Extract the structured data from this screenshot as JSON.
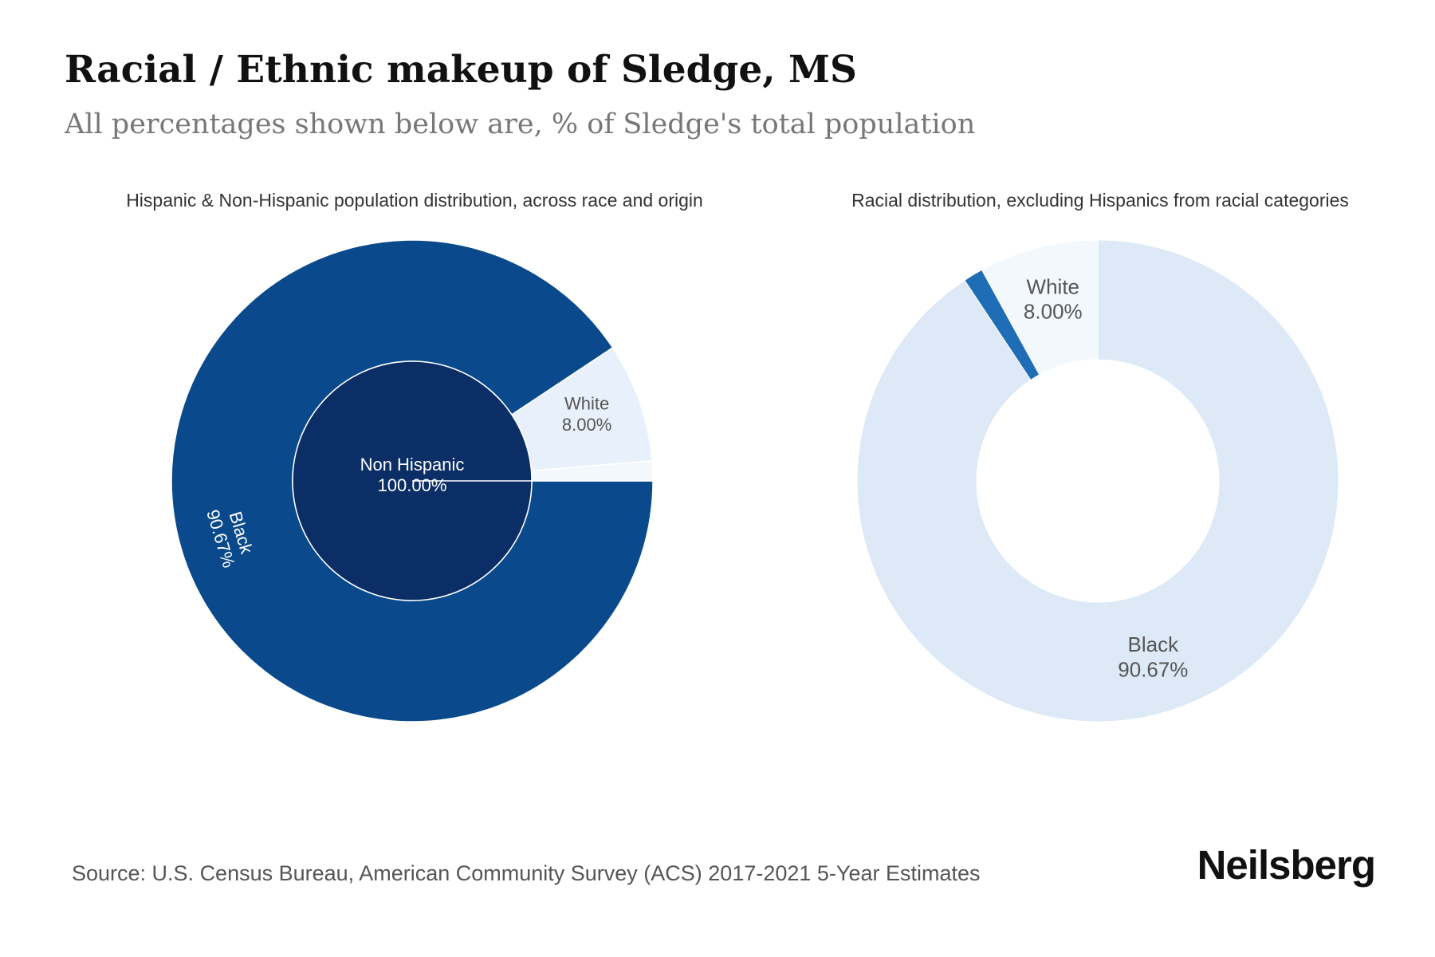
{
  "header": {
    "title": "Racial / Ethnic makeup of Sledge, MS",
    "subtitle": "All percentages shown below are, % of Sledge's total population"
  },
  "chart_data": [
    {
      "type": "pie",
      "variant": "sunburst",
      "title": "Hispanic & Non-Hispanic population distribution, across race and origin",
      "inner_ring": [
        {
          "label": "Non Hispanic",
          "value": 100.0,
          "display": "100.00%",
          "color": "#0b2e66"
        }
      ],
      "outer_ring": [
        {
          "label": "Black",
          "value": 90.67,
          "display": "90.67%",
          "color": "#0a4a8c"
        },
        {
          "label": "White",
          "value": 8.0,
          "display": "8.00%",
          "color": "#e8f1fb"
        },
        {
          "label": "",
          "value": 1.33,
          "display": "",
          "color": "#f3f8fd"
        }
      ]
    },
    {
      "type": "pie",
      "variant": "donut",
      "title": "Racial distribution, excluding Hispanics from racial categories",
      "slices": [
        {
          "label": "Black",
          "value": 90.67,
          "display": "90.67%",
          "color": "#dde9f6"
        },
        {
          "label": "",
          "value": 1.33,
          "display": "",
          "color": "#1f6eb5"
        },
        {
          "label": "White",
          "value": 8.0,
          "display": "8.00%",
          "color": "#f3f8fd"
        }
      ]
    }
  ],
  "footer": {
    "source": "Source: U.S. Census Bureau, American Community Survey (ACS) 2017-2021 5-Year Estimates",
    "brand": "Neilsberg"
  }
}
